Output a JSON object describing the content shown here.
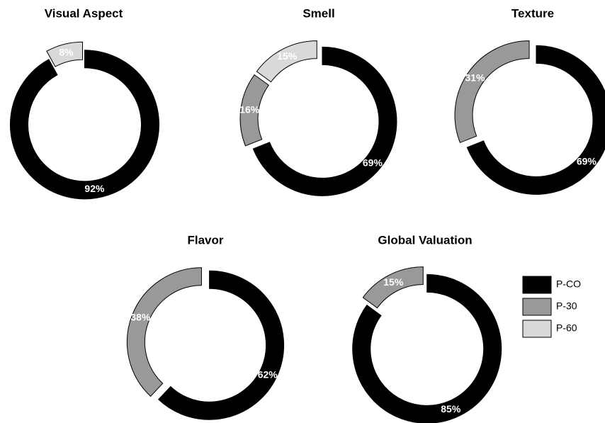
{
  "legend": {
    "items": [
      {
        "name": "P-CO",
        "color": "#000000"
      },
      {
        "name": "P-30",
        "color": "#999999"
      },
      {
        "name": "P-60",
        "color": "#d9d9d9"
      }
    ]
  },
  "chart_data": [
    {
      "type": "pie",
      "donut": true,
      "title": "Visual Aspect",
      "values": [
        92,
        null,
        8
      ],
      "value_labels": [
        "92%",
        null,
        "8%"
      ]
    },
    {
      "type": "pie",
      "donut": true,
      "title": "Smell",
      "values": [
        69,
        16,
        15
      ],
      "value_labels": [
        "69%",
        "16%",
        "15%"
      ]
    },
    {
      "type": "pie",
      "donut": true,
      "title": "Texture",
      "values": [
        69,
        31,
        null
      ],
      "value_labels": [
        "69%",
        "31%",
        null
      ]
    },
    {
      "type": "pie",
      "donut": true,
      "title": "Flavor",
      "values": [
        62,
        38,
        null
      ],
      "value_labels": [
        "62%",
        "38%",
        null
      ]
    },
    {
      "type": "pie",
      "donut": true,
      "title": "Global Valuation",
      "values": [
        85,
        15,
        null
      ],
      "value_labels": [
        "85%",
        "15%",
        null
      ]
    }
  ]
}
